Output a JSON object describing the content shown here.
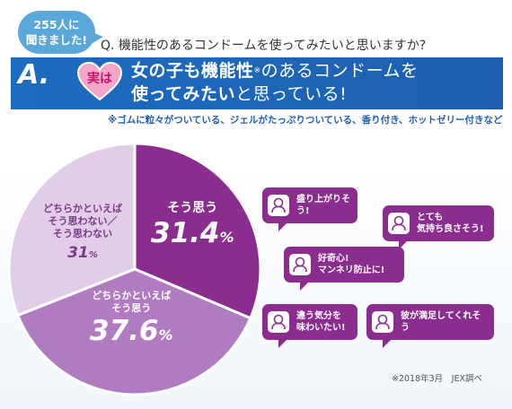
{
  "header": {
    "survey_badge_line1": "255人に",
    "survey_badge_line2": "聞きました!",
    "question": "Q. 機能性のあるコンドームを使ってみたいと思いますか?",
    "answer_letter": "A.",
    "answer_heart": "実は",
    "answer_line1_bold": "女の子も機能性",
    "answer_line1_mark": "※",
    "answer_line1_rest": "のあるコンドームを",
    "answer_line2_bold": "使ってみたい",
    "answer_line2_rest": "と思っている!",
    "footnote": "※ゴムに粒々がついている、ジェルがたっぷりついている、香り付き、ホットゼリー付きなど"
  },
  "colors": {
    "bar_blue": "#1e5fb0",
    "badge_blue": "#5aa7d9",
    "slice_yes": "#8b2d8f",
    "slice_somewhat_yes": "#b17bc1",
    "slice_somewhat_no": "#e1cde8",
    "heart": "#f3a6c8"
  },
  "chart_data": {
    "type": "pie",
    "slices": [
      {
        "label": "そう思う",
        "value": 31.4,
        "display": "31.4",
        "unit": "%",
        "color": "#8b2d8f"
      },
      {
        "label": "どちらかといえば\nそう思う",
        "value": 37.6,
        "display": "37.6",
        "unit": "%",
        "color": "#b17bc1"
      },
      {
        "label": "どちらかといえば\nそう思わない／\nそう思わない",
        "value": 31,
        "display": "31",
        "unit": "%",
        "color": "#e1cde8"
      }
    ]
  },
  "comments": [
    "盛り上がりそう!",
    "とても\n気持ち良さそう!",
    "好奇心!\nマンネリ防止に!",
    "違う気分を\n味わいたい!",
    "彼が満足してくれそう"
  ],
  "source": "※2018年3月　JEX調べ"
}
